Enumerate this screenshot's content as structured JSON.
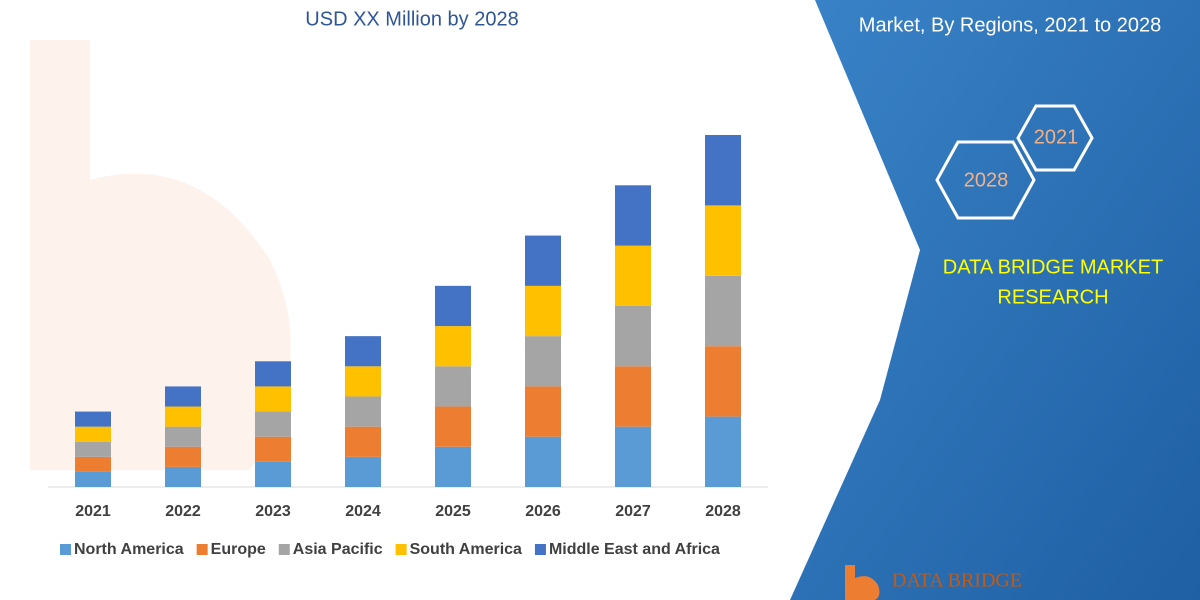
{
  "chart_data": {
    "type": "stacked-bar",
    "title": "USD XX Million by 2028",
    "categories": [
      "2021",
      "2022",
      "2023",
      "2024",
      "2025",
      "2026",
      "2027",
      "2028"
    ],
    "series": [
      {
        "name": "North America",
        "color": "#5b9bd5",
        "values": [
          15,
          20,
          25,
          30,
          40,
          50,
          60,
          70
        ]
      },
      {
        "name": "Europe",
        "color": "#ed7d31",
        "values": [
          15,
          20,
          25,
          30,
          40,
          50,
          60,
          70
        ]
      },
      {
        "name": "Asia Pacific",
        "color": "#a5a5a5",
        "values": [
          15,
          20,
          25,
          30,
          40,
          50,
          60,
          70
        ]
      },
      {
        "name": "South America",
        "color": "#ffc000",
        "values": [
          15,
          20,
          25,
          30,
          40,
          50,
          60,
          70
        ]
      },
      {
        "name": "Middle East and Africa",
        "color": "#4472c4",
        "values": [
          15,
          20,
          25,
          30,
          40,
          50,
          60,
          70
        ]
      }
    ],
    "legend": "bottom"
  },
  "panel": {
    "title": "Market, By Regions, 2021 to 2028",
    "hex_labels": [
      "2021",
      "2028"
    ],
    "brand": [
      "DATA BRIDGE MARKET",
      "RESEARCH"
    ],
    "logo": "DATA BRIDGE"
  }
}
